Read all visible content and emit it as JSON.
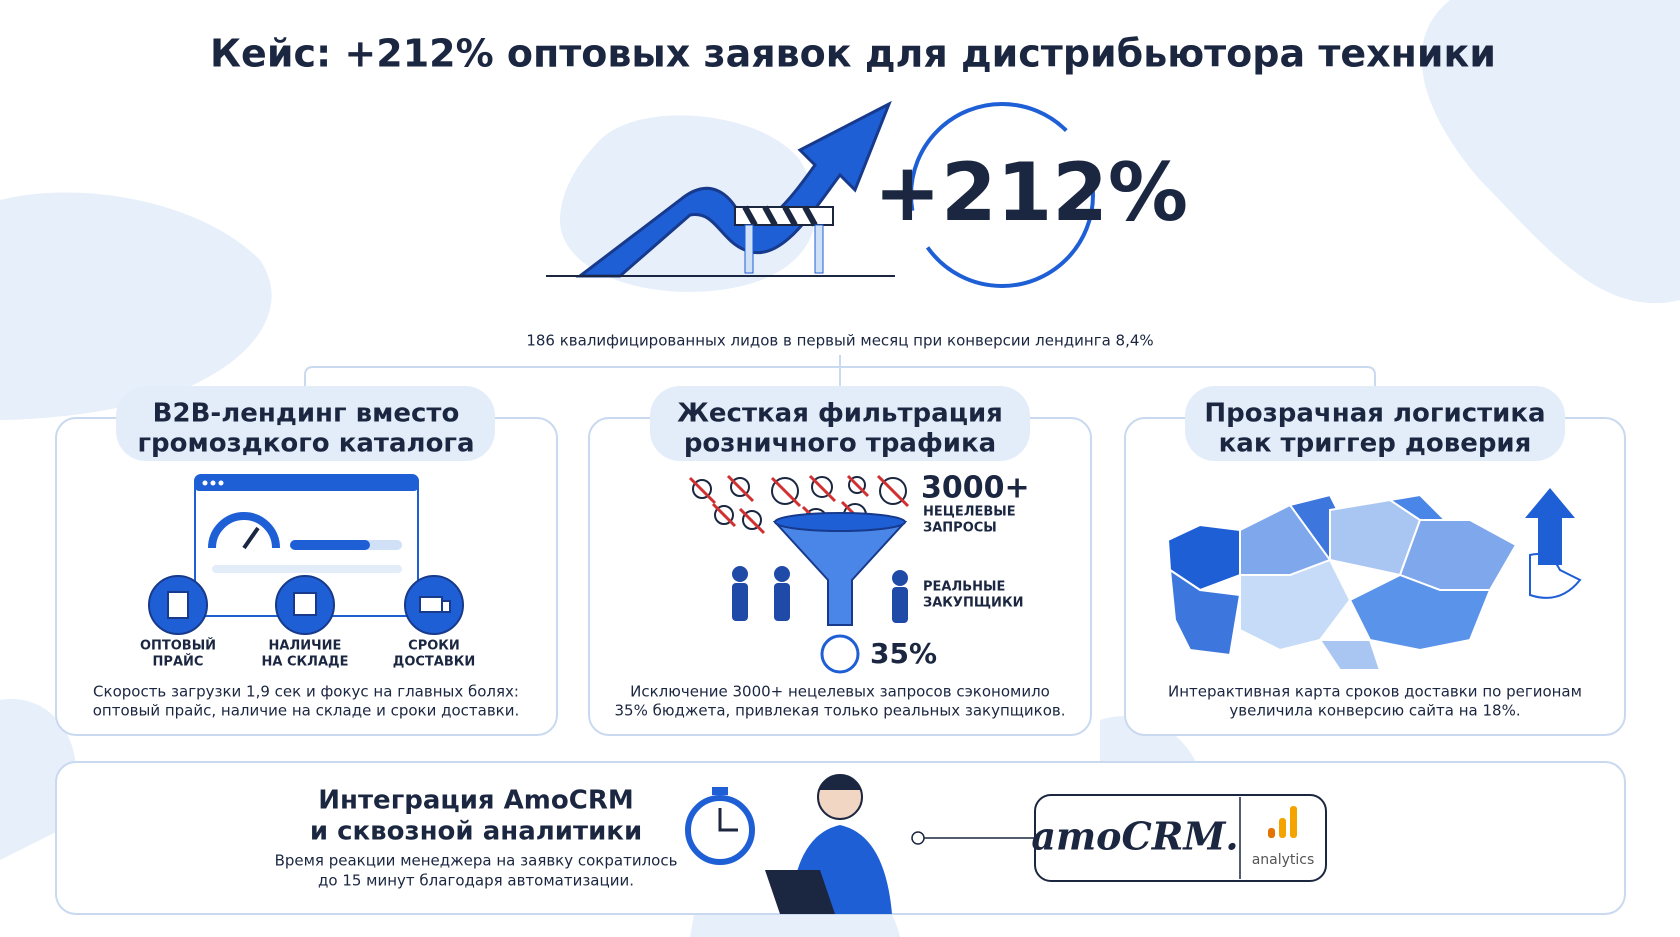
{
  "header": {
    "title": "Кейс: +212% оптовых заявок для дистрибьютора техники"
  },
  "hero": {
    "metric": "+212%",
    "caption": "186 квалифицированных лидов в первый месяц при конверсии лендинга 8,4%"
  },
  "cards": [
    {
      "title": [
        "B2B-лендинг вместо",
        "громоздкого каталога"
      ],
      "features": [
        [
          "ОПТОВЫЙ",
          "ПРАЙС"
        ],
        [
          "НАЛИЧИЕ",
          "НА СКЛАДЕ"
        ],
        [
          "СРОКИ",
          "ДОСТАВКИ"
        ]
      ],
      "description": [
        "Скорость загрузки 1,9 сек и фокус на главных болях:",
        "оптовый прайс, наличие на складе и сроки доставки."
      ]
    },
    {
      "title": [
        "Жесткая фильтрация",
        "розничного трафика"
      ],
      "stat": "3000+",
      "stat_label": [
        "НЕЦЕЛЕВЫЕ",
        "ЗАПРОСЫ"
      ],
      "buyers_label": [
        "РЕАЛЬНЫЕ",
        "ЗАКУПЩИКИ"
      ],
      "saving": "35%",
      "description": [
        "Исключение 3000+ нецелевых запросов сэкономило",
        "35% бюджета, привлекая только реальных закупщиков."
      ]
    },
    {
      "title": [
        "Прозрачная логистика",
        "как триггер доверия"
      ],
      "description": [
        "Интерактивная карта сроков доставки по регионам",
        "увеличила конверсию сайта на 18%."
      ]
    }
  ],
  "integration": {
    "title": [
      "Интеграция AmoCRM",
      "и сквозной аналитики"
    ],
    "description": [
      "Время реакции менеджера на заявку сократилось",
      "до 15 минут благодаря автоматизации."
    ],
    "crm_logo": "amoCRM.",
    "analytics_label": "analytics"
  }
}
